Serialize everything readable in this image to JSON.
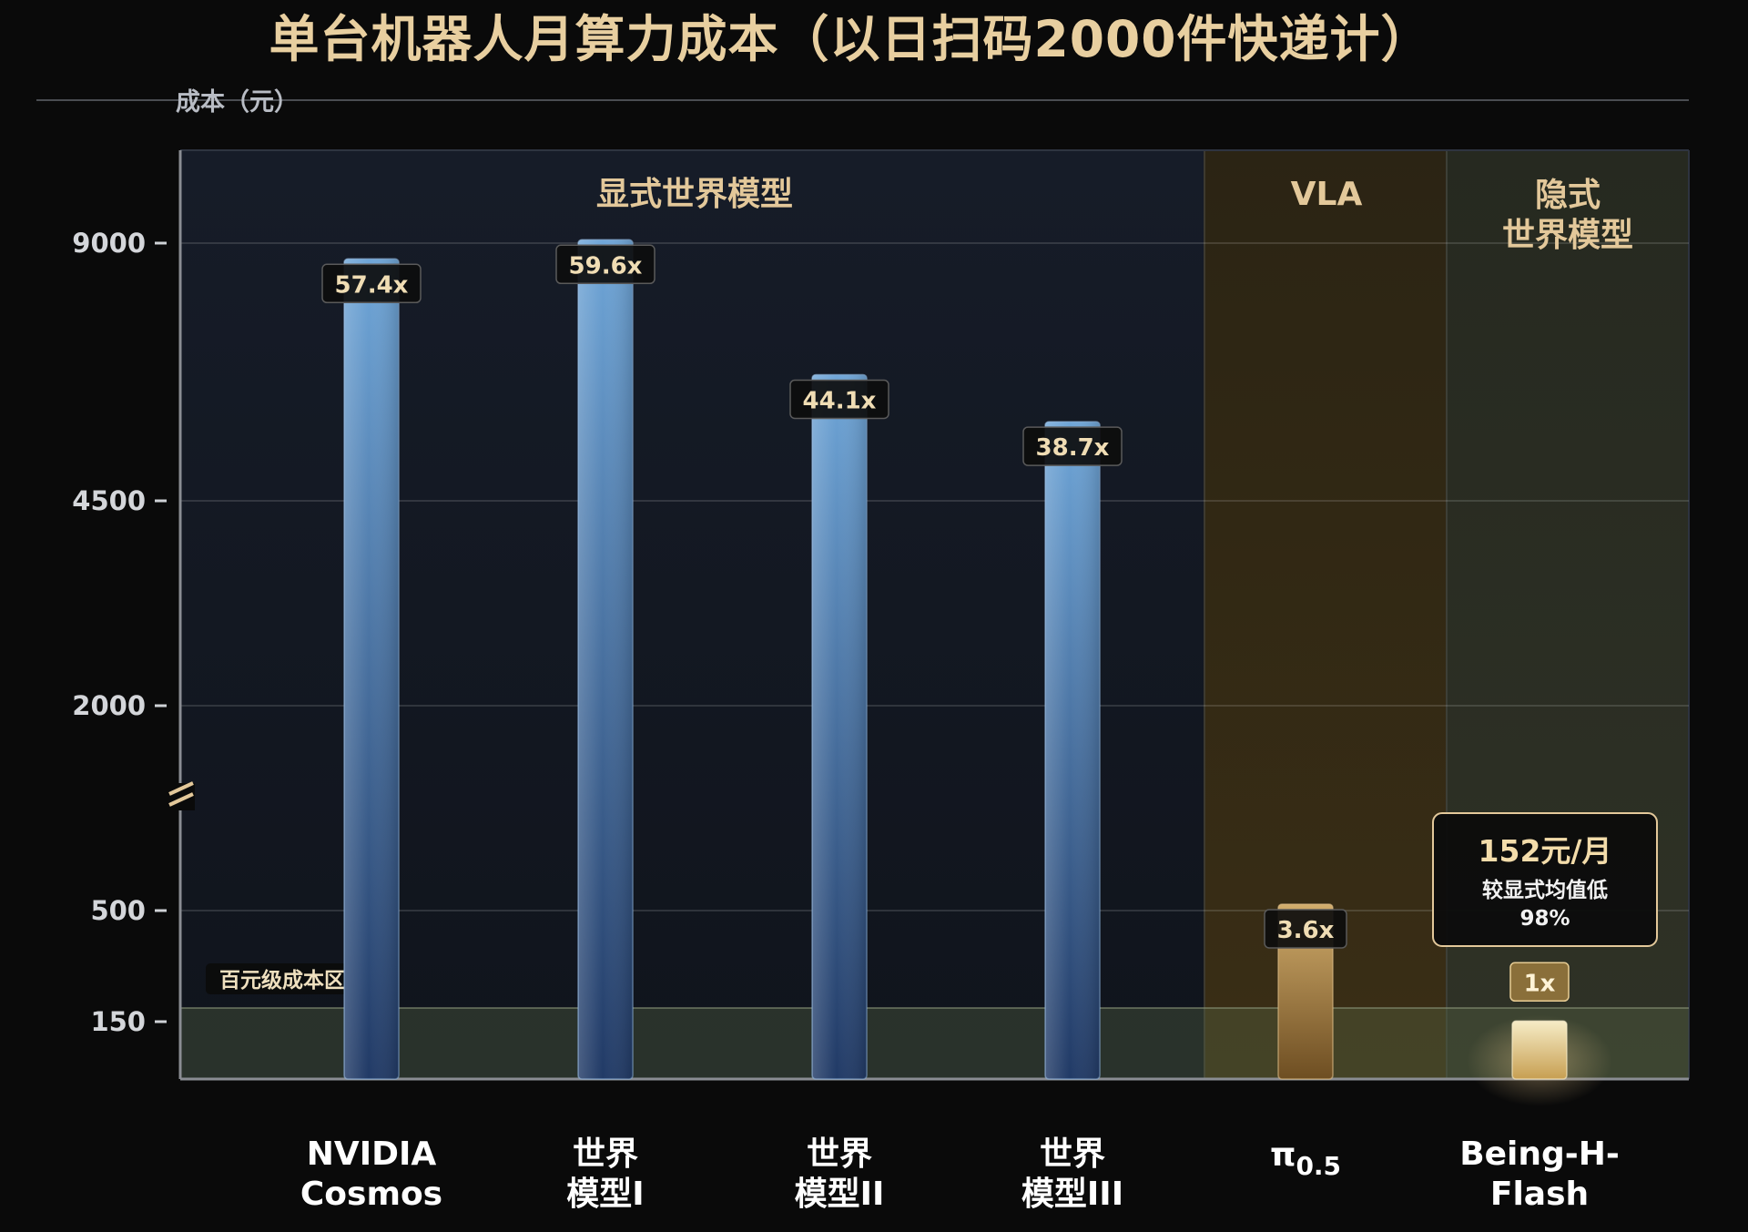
{
  "chart_data": {
    "type": "bar",
    "title": "单台机器人月算力成本（以日扫码2000件快递计）",
    "ylabel": "成本（元）",
    "yticks": [
      "9000",
      "4500",
      "2000",
      "500",
      "150"
    ],
    "ytick_values": [
      9000,
      4500,
      2000,
      500,
      150
    ],
    "axis_break": true,
    "categories": [
      {
        "line1": "NVIDIA",
        "line2": "Cosmos"
      },
      {
        "line1": "世界",
        "line2": "模型I"
      },
      {
        "line1": "世界",
        "line2": "模型II"
      },
      {
        "line1": "世界",
        "line2": "模型III"
      },
      {
        "line1": "π",
        "sub": "0.5"
      },
      {
        "line1": "Being-H-",
        "line2": "Flash"
      }
    ],
    "values": [
      8725,
      9059,
      6703,
      5882,
      547,
      152
    ],
    "multipliers": [
      "57.4x",
      "59.6x",
      "44.1x",
      "38.7x",
      "3.6x",
      "1x"
    ],
    "regions": [
      {
        "line1": "显式世界模型",
        "line2": ""
      },
      {
        "line1": "VLA",
        "line2": ""
      },
      {
        "line1": "隐式",
        "line2": "世界模型"
      }
    ],
    "zone_label": "百元级成本区",
    "annotation": {
      "main": "152元/月",
      "sub1": "较显式均值低",
      "sub2": "98%"
    },
    "colors": {
      "explicit_bar": "#5f93c9",
      "vla_bar": "#b48a4a",
      "implicit_bar": "#e8d7a4",
      "accent": "#e3c89a"
    }
  }
}
